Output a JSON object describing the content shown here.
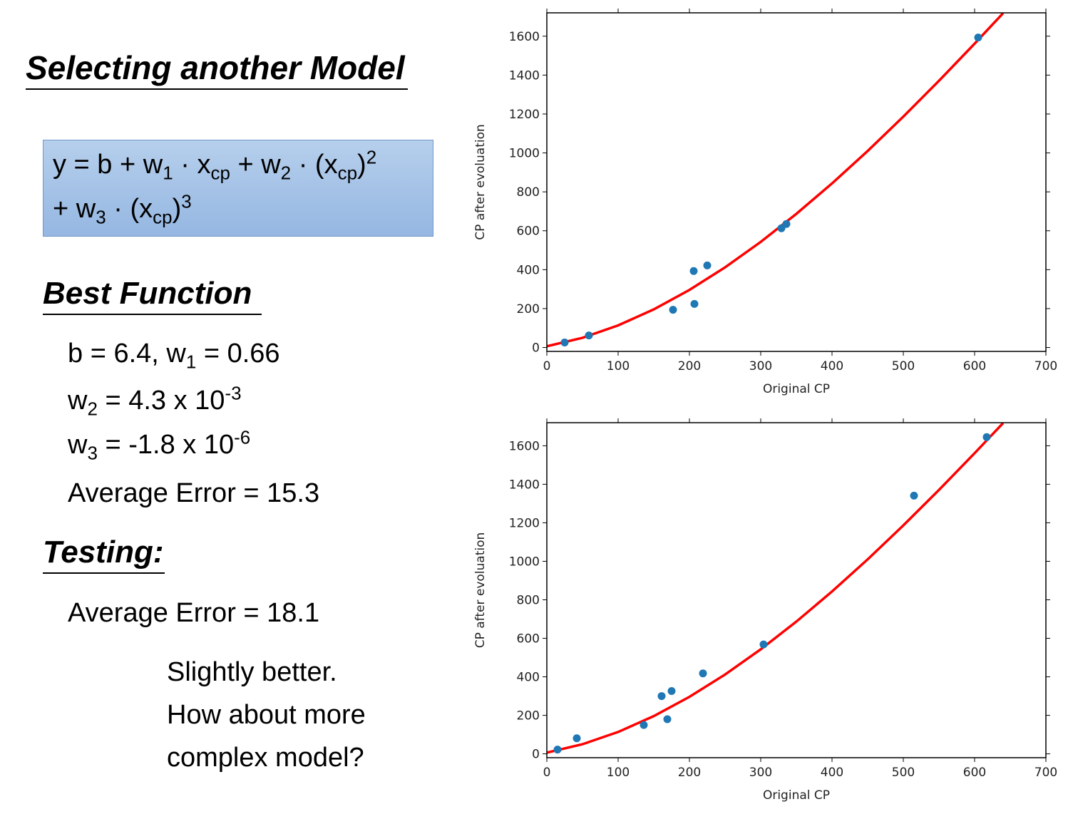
{
  "title": "Selecting another Model",
  "formula": {
    "lines": [
      [
        {
          "text": "y = b + w"
        },
        {
          "text": "1",
          "script": "sub"
        },
        {
          "text": " · x"
        },
        {
          "text": "cp",
          "script": "sub"
        },
        {
          "text": " + w"
        },
        {
          "text": "2",
          "script": "sub"
        },
        {
          "text": " · (x"
        },
        {
          "text": "cp",
          "script": "sub"
        },
        {
          "text": ")"
        },
        {
          "text": "2",
          "script": "sup"
        }
      ],
      [
        {
          "text": "+ w"
        },
        {
          "text": "3",
          "script": "sub"
        },
        {
          "text": " · (x"
        },
        {
          "text": "cp",
          "script": "sub"
        },
        {
          "text": ")"
        },
        {
          "text": "3",
          "script": "sup"
        }
      ]
    ]
  },
  "best_function": {
    "heading": "Best Function",
    "lines": [
      [
        {
          "text": "b = 6.4, w"
        },
        {
          "text": "1",
          "script": "sub"
        },
        {
          "text": " = 0.66"
        }
      ],
      [
        {
          "text": "w"
        },
        {
          "text": "2",
          "script": "sub"
        },
        {
          "text": " = 4.3 x 10"
        },
        {
          "text": "-3",
          "script": "sup"
        }
      ],
      [
        {
          "text": "w"
        },
        {
          "text": "3",
          "script": "sub"
        },
        {
          "text": " = -1.8 x 10"
        },
        {
          "text": "-6",
          "script": "sup"
        }
      ],
      [
        {
          "text": "Average Error = 15.3"
        }
      ]
    ]
  },
  "testing": {
    "heading": "Testing:",
    "lines": [
      [
        {
          "text": "Average Error = 18.1"
        }
      ]
    ]
  },
  "note": {
    "lines": [
      "Slightly better.",
      "How about more",
      "complex model?"
    ]
  },
  "chart_data": [
    {
      "type": "scatter",
      "xlabel": "Original CP",
      "ylabel": "CP after evoluation",
      "xlim": [
        0,
        700
      ],
      "ylim": [
        -20,
        1720
      ],
      "xticks": [
        0,
        100,
        200,
        300,
        400,
        500,
        600,
        700
      ],
      "yticks": [
        0,
        200,
        400,
        600,
        800,
        1000,
        1200,
        1400,
        1600
      ],
      "series": [
        {
          "type": "scatter",
          "color": "#1f77b4",
          "x": [
            25,
            59,
            177,
            206,
            207,
            225,
            329,
            336,
            605
          ],
          "values": [
            26,
            62,
            194,
            393,
            224,
            422,
            613,
            635,
            1593
          ]
        },
        {
          "type": "line",
          "color": "#ff0000",
          "x": [
            0,
            50,
            100,
            150,
            200,
            250,
            300,
            350,
            400,
            450,
            500,
            550,
            600,
            640
          ],
          "values": [
            6.4,
            49.9,
            113.6,
            196.1,
            296.0,
            412.0,
            542.8,
            687.0,
            843.2,
            1010.1,
            1186.4,
            1370.7,
            1561.6,
            1718.2
          ]
        }
      ]
    },
    {
      "type": "scatter",
      "xlabel": "Original CP",
      "ylabel": "CP after evoluation",
      "xlim": [
        0,
        700
      ],
      "ylim": [
        -20,
        1720
      ],
      "xticks": [
        0,
        100,
        200,
        300,
        400,
        500,
        600,
        700
      ],
      "yticks": [
        0,
        200,
        400,
        600,
        800,
        1000,
        1200,
        1400,
        1600
      ],
      "series": [
        {
          "type": "scatter",
          "color": "#1f77b4",
          "x": [
            15,
            42,
            136,
            161,
            169,
            175,
            219,
            304,
            515,
            617
          ],
          "values": [
            22,
            81,
            150,
            300,
            180,
            326,
            418,
            568,
            1341,
            1645
          ]
        },
        {
          "type": "line",
          "color": "#ff0000",
          "x": [
            0,
            50,
            100,
            150,
            200,
            250,
            300,
            350,
            400,
            450,
            500,
            550,
            600,
            640
          ],
          "values": [
            6.4,
            49.9,
            113.6,
            196.1,
            296.0,
            412.0,
            542.8,
            687.0,
            843.2,
            1010.1,
            1186.4,
            1370.7,
            1561.6,
            1718.2
          ]
        }
      ]
    }
  ]
}
